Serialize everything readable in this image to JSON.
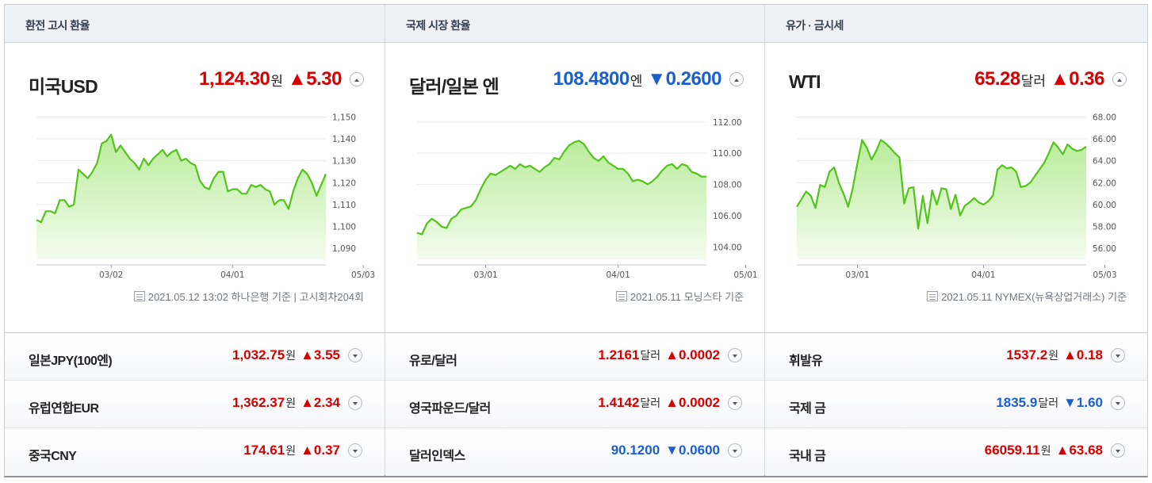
{
  "panels": [
    {
      "header": "환전 고시 환율",
      "main": {
        "name": "미국USD",
        "value": "1,124.30",
        "unit": "원",
        "change": "▲5.30",
        "direction": "up"
      },
      "source": "2021.05.12 13:02 하나은행 기준 | 고시회차204회",
      "subs": [
        {
          "name": "일본JPY(100엔)",
          "value": "1,032.75",
          "unit": "원",
          "change": "▲3.55",
          "direction": "up"
        },
        {
          "name": "유럽연합EUR",
          "value": "1,362.37",
          "unit": "원",
          "change": "▲2.34",
          "direction": "up"
        },
        {
          "name": "중국CNY",
          "value": "174.61",
          "unit": "원",
          "change": "▲0.37",
          "direction": "up"
        }
      ]
    },
    {
      "header": "국제 시장 환율",
      "main": {
        "name": "달러/일본 엔",
        "value": "108.4800",
        "unit": "엔",
        "change": "▼0.2600",
        "direction": "down"
      },
      "source": "2021.05.11 모닝스타 기준",
      "subs": [
        {
          "name": "유로/달러",
          "value": "1.2161",
          "unit": "달러",
          "change": "▲0.0002",
          "direction": "up"
        },
        {
          "name": "영국파운드/달러",
          "value": "1.4142",
          "unit": "달러",
          "change": "▲0.0002",
          "direction": "up"
        },
        {
          "name": "달러인덱스",
          "value": "90.1200",
          "unit": "",
          "change": "▼0.0600",
          "direction": "down"
        }
      ]
    },
    {
      "header": "유가 · 금시세",
      "main": {
        "name": "WTI",
        "value": "65.28",
        "unit": "달러",
        "change": "▲0.36",
        "direction": "up"
      },
      "source": "2021.05.11 NYMEX(뉴욕상업거래소) 기준",
      "subs": [
        {
          "name": "휘발유",
          "value": "1537.2",
          "unit": "원",
          "change": "▲0.18",
          "direction": "up"
        },
        {
          "name": "국제 금",
          "value": "1835.9",
          "unit": "달러",
          "change": "▼1.60",
          "direction": "down"
        },
        {
          "name": "국내 금",
          "value": "66059.11",
          "unit": "원",
          "change": "▲63.68",
          "direction": "up"
        }
      ]
    }
  ],
  "colors": {
    "up": "#d60000",
    "down": "#1a5fd1",
    "line": "#52c41a",
    "fill_top": "#b9ec9a",
    "fill_bottom": "#f4fcef"
  },
  "icons": {
    "expand": "chevron-up-icon",
    "sub_expand": "chevron-down-icon",
    "source": "document-icon"
  },
  "chart_data": [
    {
      "type": "area",
      "ylim": [
        1085,
        1152
      ],
      "yticks": [
        "1,150",
        "1,140",
        "1,130",
        "1,120",
        "1,110",
        "1,100",
        "1,090"
      ],
      "ytick_values": [
        1150,
        1140,
        1130,
        1120,
        1110,
        1100,
        1090
      ],
      "xticks": [
        "03/02",
        "04/01",
        "05/03"
      ],
      "xtick_index": [
        16,
        42,
        70
      ],
      "values": [
        1103,
        1102,
        1107,
        1107,
        1106,
        1112,
        1112,
        1109,
        1110,
        1126,
        1124,
        1122,
        1125,
        1129,
        1138,
        1139,
        1142,
        1134,
        1137,
        1134,
        1131,
        1129,
        1126,
        1131,
        1128,
        1131,
        1133,
        1135,
        1132,
        1134,
        1135,
        1130,
        1131,
        1129,
        1128,
        1121,
        1118,
        1117,
        1122,
        1125,
        1125,
        1116,
        1117,
        1117,
        1115,
        1115,
        1119,
        1118,
        1119,
        1117,
        1116,
        1110,
        1112,
        1112,
        1108,
        1116,
        1122,
        1126,
        1124,
        1120,
        1114,
        1119,
        1124
      ]
    },
    {
      "type": "area",
      "ylim": [
        103.2,
        112.6
      ],
      "yticks": [
        "112.00",
        "110.00",
        "108.00",
        "106.00",
        "104.00"
      ],
      "ytick_values": [
        112,
        110,
        108,
        106,
        104
      ],
      "xticks": [
        "03/01",
        "04/01",
        "05/01"
      ],
      "xtick_index": [
        14,
        41,
        67
      ],
      "values": [
        104.9,
        104.8,
        105.5,
        105.8,
        105.6,
        105.3,
        105.2,
        105.8,
        106.0,
        106.4,
        106.5,
        106.6,
        107.0,
        107.7,
        108.3,
        108.7,
        108.6,
        108.8,
        109.0,
        109.2,
        109.0,
        109.3,
        109.1,
        109.2,
        109.0,
        108.8,
        109.1,
        109.3,
        109.7,
        109.6,
        110.1,
        110.5,
        110.7,
        110.8,
        110.6,
        110.1,
        109.7,
        109.5,
        109.8,
        109.4,
        109.2,
        109.0,
        109.0,
        108.7,
        108.2,
        108.3,
        108.2,
        108.0,
        108.2,
        108.5,
        108.9,
        109.2,
        109.3,
        109.0,
        109.3,
        109.2,
        108.8,
        108.7,
        108.5,
        108.5
      ]
    },
    {
      "type": "area",
      "ylim": [
        55.0,
        68.4
      ],
      "yticks": [
        "68.00",
        "66.00",
        "64.00",
        "62.00",
        "60.00",
        "58.00",
        "56.00"
      ],
      "ytick_values": [
        68,
        66,
        64,
        62,
        60,
        58,
        56
      ],
      "xticks": [
        "03/01",
        "04/01",
        "05/03"
      ],
      "xtick_index": [
        13,
        40,
        66
      ],
      "values": [
        59.8,
        60.5,
        61.2,
        60.8,
        59.7,
        61.8,
        61.6,
        63.0,
        63.4,
        62.0,
        61.0,
        59.8,
        61.5,
        63.8,
        65.9,
        65.2,
        64.1,
        64.9,
        65.9,
        65.6,
        65.2,
        64.7,
        64.3,
        60.1,
        61.5,
        61.6,
        57.8,
        60.8,
        58.3,
        61.3,
        60.0,
        61.5,
        61.4,
        59.6,
        60.9,
        59.0,
        59.9,
        60.2,
        60.6,
        60.2,
        60.0,
        60.3,
        60.8,
        63.2,
        63.6,
        63.3,
        63.4,
        63.0,
        61.6,
        61.7,
        62.0,
        62.6,
        63.2,
        63.8,
        64.7,
        65.7,
        65.2,
        64.6,
        65.5,
        65.1,
        64.9,
        65.0,
        65.3
      ]
    }
  ]
}
